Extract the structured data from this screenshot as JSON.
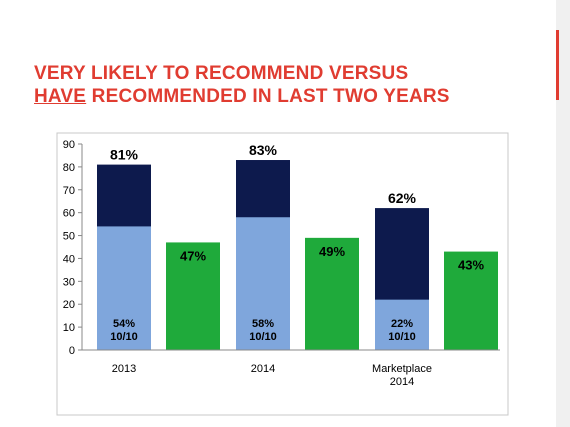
{
  "slide": {
    "title_line1": "VERY LIKELY TO RECOMMEND VERSUS",
    "title_line2_emph": "HAVE",
    "title_line2_rest": " RECOMMENDED IN LAST TWO YEARS"
  },
  "colors": {
    "title": "#e03c31",
    "bar_dark": "#0d1a4d",
    "bar_light": "#7fa6dc",
    "bar_green": "#1faa3b",
    "accent": "#e03c31"
  },
  "chart_data": {
    "type": "bar",
    "ylim": [
      0,
      90
    ],
    "yticks": [
      0,
      10,
      20,
      30,
      40,
      50,
      60,
      70,
      80,
      90
    ],
    "grid": false,
    "legend": "none",
    "groups": [
      {
        "category": [
          "2013"
        ],
        "stack": {
          "total": 81,
          "total_label": "81%",
          "base": 54,
          "base_label": "54%",
          "base_sublabel": "10/10"
        },
        "green": {
          "value": 47,
          "label": "47%"
        }
      },
      {
        "category": [
          "2014"
        ],
        "stack": {
          "total": 83,
          "total_label": "83%",
          "base": 58,
          "base_label": "58%",
          "base_sublabel": "10/10"
        },
        "green": {
          "value": 49,
          "label": "49%"
        }
      },
      {
        "category": [
          "Marketplace",
          "2014"
        ],
        "stack": {
          "total": 62,
          "total_label": "62%",
          "base": 22,
          "base_label": "22%",
          "base_sublabel": "10/10"
        },
        "green": {
          "value": 43,
          "label": "43%"
        }
      }
    ]
  }
}
